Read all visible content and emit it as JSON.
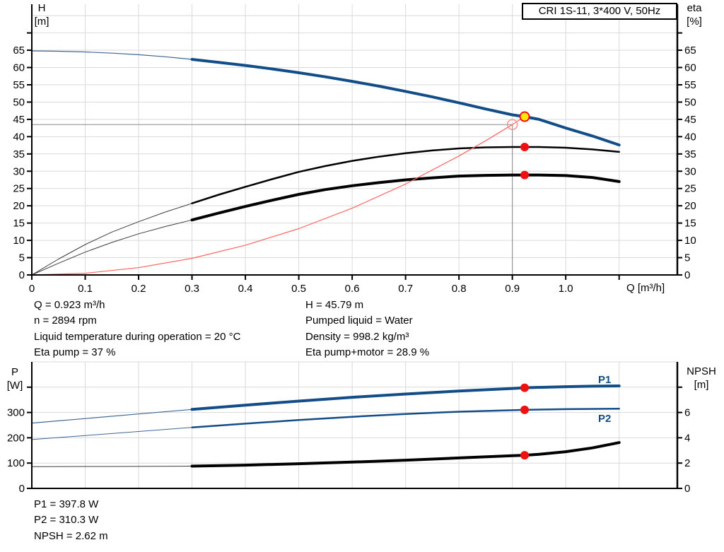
{
  "colors": {
    "blue": "#124d87",
    "blue_thin": "#3f6694",
    "black": "#000000",
    "thin_black": "#3c3c3c",
    "red": "#ee1111",
    "light_red": "#ff9090",
    "system_red": "#ff6262",
    "yellow": "#ffe80a",
    "crosshair": "#8a8a8a",
    "grid": "#d9d9d9"
  },
  "info_blocks": {
    "top_left": [
      "Q = 0.923 m³/h",
      "n = 2894 rpm",
      "Liquid temperature during operation = 20 °C",
      "Eta pump = 37 %"
    ],
    "top_right": [
      "H = 45.79 m",
      "Pumped liquid = Water",
      "Density = 998.2 kg/m³",
      "Eta pump+motor = 28.9 %"
    ],
    "bottom": [
      "P1 = 397.8 W",
      "P2 = 310.3 W",
      "NPSH = 2.62 m"
    ]
  },
  "chart_data": [
    {
      "id": "qh",
      "type": "line",
      "title": "CRI 1S-11, 3*400 V, 50Hz",
      "x_axis": {
        "label": "Q [m³/h]",
        "min": 0,
        "max": 1.209,
        "ticks": [
          0,
          0.1,
          0.2,
          0.3,
          0.4,
          0.5,
          0.6,
          0.7,
          0.8,
          0.9,
          1.0,
          1.1
        ],
        "tick_labels": [
          "0",
          "0.1",
          "0.2",
          "0.3",
          "0.4",
          "0.5",
          "0.6",
          "0.7",
          "0.8",
          "0.9",
          "1.0",
          ""
        ],
        "gridlines": [
          0.1,
          0.2,
          0.3,
          0.4,
          0.5,
          0.6,
          0.7,
          0.8,
          0.9,
          1.0,
          1.1
        ]
      },
      "y_left": {
        "name": "H",
        "unit": "[m]",
        "min": 0,
        "max": 78.3,
        "ticks": [
          0,
          5,
          10,
          15,
          20,
          25,
          30,
          35,
          40,
          45,
          50,
          55,
          60,
          65,
          70
        ],
        "tick_labels": [
          "0",
          "5",
          "10",
          "15",
          "20",
          "25",
          "30",
          "35",
          "40",
          "45",
          "50",
          "55",
          "60",
          "65",
          ""
        ],
        "gridlines": [
          5,
          10,
          15,
          20,
          25,
          30,
          35,
          40,
          45,
          50,
          55,
          60,
          65,
          70,
          75
        ]
      },
      "y_right": {
        "name": "eta",
        "unit": "[%]",
        "min": 0,
        "max": 78.3,
        "ticks": [
          0,
          5,
          10,
          15,
          20,
          25,
          30,
          35,
          40,
          45,
          50,
          55,
          60,
          65,
          70
        ],
        "tick_labels": [
          "0",
          "5",
          "10",
          "15",
          "20",
          "25",
          "30",
          "35",
          "40",
          "45",
          "50",
          "55",
          "60",
          "65",
          ""
        ]
      },
      "crosshair": {
        "q": 0.9,
        "v": 43.5
      },
      "series": [
        {
          "name": "head-curve-catalog",
          "color": "blue_thin",
          "width": 1.2,
          "axis": "left",
          "points": [
            [
              0,
              64.8
            ],
            [
              0.05,
              64.7
            ],
            [
              0.1,
              64.5
            ],
            [
              0.15,
              64.15
            ],
            [
              0.2,
              63.7
            ],
            [
              0.25,
              63.1
            ],
            [
              0.3,
              62.35
            ]
          ]
        },
        {
          "name": "head-curve",
          "color": "blue",
          "width": 4,
          "axis": "left",
          "points": [
            [
              0.3,
              62.35
            ],
            [
              0.35,
              61.5
            ],
            [
              0.4,
              60.6
            ],
            [
              0.45,
              59.6
            ],
            [
              0.5,
              58.5
            ],
            [
              0.55,
              57.3
            ],
            [
              0.6,
              56.0
            ],
            [
              0.65,
              54.6
            ],
            [
              0.7,
              53.1
            ],
            [
              0.75,
              51.5
            ],
            [
              0.8,
              49.8
            ],
            [
              0.85,
              48.0
            ],
            [
              0.9,
              46.3
            ],
            [
              0.923,
              45.79
            ],
            [
              0.95,
              45.0
            ],
            [
              1.0,
              42.5
            ],
            [
              1.05,
              40.2
            ],
            [
              1.1,
              37.6
            ]
          ]
        },
        {
          "name": "eta-pump-curve-catalog",
          "color": "thin_black",
          "width": 1,
          "axis": "right",
          "points": [
            [
              0,
              0
            ],
            [
              0.05,
              4.6
            ],
            [
              0.1,
              8.8
            ],
            [
              0.15,
              12.4
            ],
            [
              0.2,
              15.4
            ],
            [
              0.25,
              18.2
            ],
            [
              0.3,
              20.7
            ]
          ]
        },
        {
          "name": "eta-pump-curve",
          "color": "black",
          "width": 2.5,
          "axis": "right",
          "points": [
            [
              0.3,
              20.7
            ],
            [
              0.35,
              23.2
            ],
            [
              0.4,
              25.5
            ],
            [
              0.45,
              27.7
            ],
            [
              0.5,
              29.8
            ],
            [
              0.55,
              31.5
            ],
            [
              0.6,
              33.0
            ],
            [
              0.65,
              34.2
            ],
            [
              0.7,
              35.2
            ],
            [
              0.75,
              36.0
            ],
            [
              0.8,
              36.6
            ],
            [
              0.85,
              36.9
            ],
            [
              0.9,
              37.0
            ],
            [
              0.95,
              37.0
            ],
            [
              1.0,
              36.8
            ],
            [
              1.05,
              36.3
            ],
            [
              1.1,
              35.6
            ]
          ]
        },
        {
          "name": "eta-pump-motor-curve-catalog",
          "color": "thin_black",
          "width": 1,
          "axis": "right",
          "points": [
            [
              0,
              0
            ],
            [
              0.05,
              3.4
            ],
            [
              0.1,
              6.6
            ],
            [
              0.15,
              9.4
            ],
            [
              0.2,
              11.9
            ],
            [
              0.25,
              14.0
            ],
            [
              0.3,
              15.9
            ]
          ]
        },
        {
          "name": "eta-pump-motor-curve",
          "color": "black",
          "width": 4,
          "axis": "right",
          "points": [
            [
              0.3,
              15.9
            ],
            [
              0.35,
              17.9
            ],
            [
              0.4,
              19.8
            ],
            [
              0.45,
              21.6
            ],
            [
              0.5,
              23.3
            ],
            [
              0.55,
              24.7
            ],
            [
              0.6,
              25.8
            ],
            [
              0.65,
              26.7
            ],
            [
              0.7,
              27.5
            ],
            [
              0.75,
              28.1
            ],
            [
              0.8,
              28.6
            ],
            [
              0.85,
              28.8
            ],
            [
              0.9,
              28.9
            ],
            [
              0.95,
              28.9
            ],
            [
              1.0,
              28.75
            ],
            [
              1.05,
              28.2
            ],
            [
              1.1,
              27.0
            ]
          ]
        },
        {
          "name": "system-curve",
          "color": "system_red",
          "width": 1.2,
          "axis": "left",
          "points": [
            [
              0,
              0
            ],
            [
              0.1,
              0.5
            ],
            [
              0.2,
              2.1
            ],
            [
              0.3,
              4.8
            ],
            [
              0.4,
              8.6
            ],
            [
              0.5,
              13.4
            ],
            [
              0.6,
              19.3
            ],
            [
              0.7,
              26.3
            ],
            [
              0.8,
              34.4
            ],
            [
              0.85,
              38.8
            ],
            [
              0.9,
              43.5
            ],
            [
              0.923,
              45.79
            ]
          ]
        }
      ],
      "markers": [
        {
          "name": "requested-duty-point",
          "shape": "open-circle",
          "axis": "left",
          "q": 0.9,
          "v": 43.5,
          "r": 7,
          "color": "light_red"
        },
        {
          "name": "actual-duty-point",
          "shape": "duty",
          "axis": "left",
          "q": 0.923,
          "v": 45.79,
          "r": 6.5,
          "color": "yellow",
          "ring": "red"
        },
        {
          "name": "eta-pump-point",
          "shape": "dot",
          "axis": "right",
          "q": 0.923,
          "v": 37,
          "r": 6,
          "color": "red"
        },
        {
          "name": "eta-pump-motor-point",
          "shape": "dot",
          "axis": "right",
          "q": 0.923,
          "v": 28.9,
          "r": 6,
          "color": "red"
        }
      ]
    },
    {
      "id": "power-npsh",
      "type": "line",
      "x_axis": {
        "min": 0,
        "max": 1.209,
        "ticks": [],
        "tick_labels": [],
        "gridlines": [
          0.1,
          0.2,
          0.3,
          0.4,
          0.5,
          0.6,
          0.7,
          0.8,
          0.9,
          1.0,
          1.1
        ]
      },
      "y_left": {
        "name": "P",
        "unit": "[W]",
        "min": 0,
        "max": 500,
        "ticks": [
          0,
          100,
          200,
          300,
          400
        ],
        "tick_labels": [
          "0",
          "100",
          "200",
          "300",
          ""
        ],
        "gridlines": [
          100,
          200,
          300,
          400,
          500
        ]
      },
      "y_right": {
        "name": "NPSH",
        "unit": "[m]",
        "min": 0,
        "max": 10,
        "ticks": [
          0,
          2,
          4,
          6,
          8
        ],
        "tick_labels": [
          "0",
          "2",
          "4",
          "6",
          ""
        ]
      },
      "curve_labels": [
        {
          "text": "P1"
        },
        {
          "text": "P2"
        }
      ],
      "series": [
        {
          "name": "p1-curve-catalog",
          "color": "blue_thin",
          "width": 1.2,
          "axis": "left",
          "points": [
            [
              0,
              258
            ],
            [
              0.1,
              276
            ],
            [
              0.2,
              294
            ],
            [
              0.3,
              312
            ]
          ]
        },
        {
          "name": "p1-curve",
          "color": "blue",
          "width": 4,
          "axis": "left",
          "points": [
            [
              0.3,
              312
            ],
            [
              0.4,
              329
            ],
            [
              0.5,
              345
            ],
            [
              0.6,
              360
            ],
            [
              0.7,
              373
            ],
            [
              0.8,
              385
            ],
            [
              0.9,
              395
            ],
            [
              0.923,
              397.8
            ],
            [
              1.0,
              402
            ],
            [
              1.05,
              404
            ],
            [
              1.1,
              405
            ]
          ]
        },
        {
          "name": "p2-curve-catalog",
          "color": "blue_thin",
          "width": 1,
          "axis": "left",
          "points": [
            [
              0,
              193
            ],
            [
              0.1,
              209
            ],
            [
              0.2,
              225
            ],
            [
              0.3,
              241
            ]
          ]
        },
        {
          "name": "p2-curve",
          "color": "blue",
          "width": 2.5,
          "axis": "left",
          "points": [
            [
              0.3,
              241
            ],
            [
              0.4,
              256
            ],
            [
              0.5,
              270
            ],
            [
              0.6,
              283
            ],
            [
              0.7,
              294
            ],
            [
              0.8,
              303
            ],
            [
              0.9,
              309
            ],
            [
              0.923,
              310.3
            ],
            [
              1.0,
              313
            ],
            [
              1.1,
              315
            ]
          ]
        },
        {
          "name": "npsh-curve-catalog",
          "color": "thin_black",
          "width": 1,
          "axis": "right",
          "points": [
            [
              0,
              1.72
            ],
            [
              0.15,
              1.73
            ],
            [
              0.3,
              1.76
            ]
          ]
        },
        {
          "name": "npsh-curve",
          "color": "black",
          "width": 4,
          "axis": "right",
          "points": [
            [
              0.3,
              1.76
            ],
            [
              0.4,
              1.84
            ],
            [
              0.5,
              1.95
            ],
            [
              0.6,
              2.08
            ],
            [
              0.7,
              2.23
            ],
            [
              0.8,
              2.41
            ],
            [
              0.9,
              2.58
            ],
            [
              0.923,
              2.62
            ],
            [
              0.95,
              2.7
            ],
            [
              1.0,
              2.9
            ],
            [
              1.05,
              3.2
            ],
            [
              1.1,
              3.62
            ]
          ]
        }
      ],
      "markers": [
        {
          "name": "p1-point",
          "shape": "dot",
          "axis": "left",
          "q": 0.923,
          "v": 397.8,
          "r": 6,
          "color": "red"
        },
        {
          "name": "p2-point",
          "shape": "dot",
          "axis": "left",
          "q": 0.923,
          "v": 310.3,
          "r": 6,
          "color": "red"
        },
        {
          "name": "npsh-point",
          "shape": "dot",
          "axis": "right",
          "q": 0.923,
          "v": 2.62,
          "r": 6,
          "color": "red"
        }
      ]
    }
  ]
}
